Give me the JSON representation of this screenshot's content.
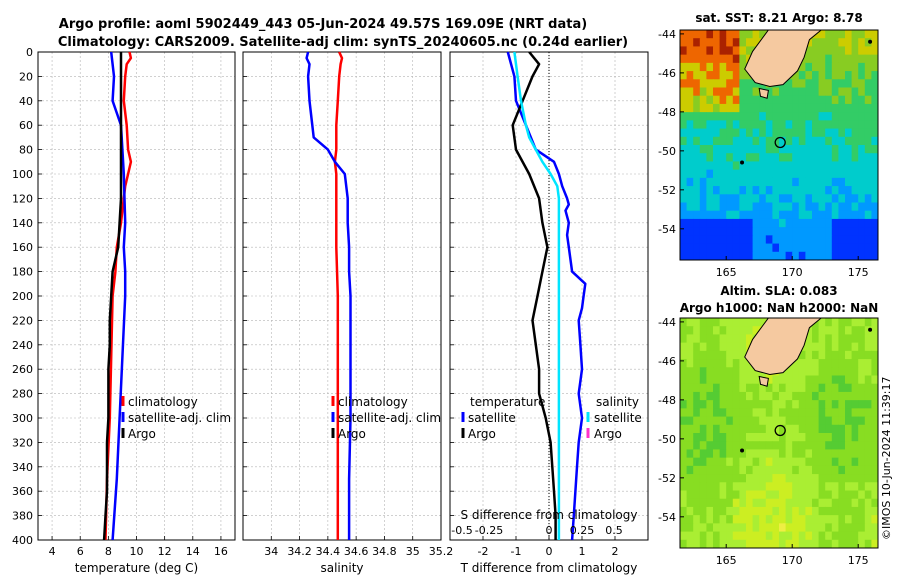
{
  "title": {
    "line1": "Argo profile: aoml 5902449_443 05-Jun-2024 49.57S 169.09E (NRT data)",
    "line2": "Climatology: CARS2009. Satellite-adj clim: synTS_20240605.nc (0.24d earlier)"
  },
  "depth_axis": {
    "ylim": [
      0,
      400
    ],
    "ticks": [
      "0",
      "20",
      "40",
      "60",
      "80",
      "100",
      "120",
      "140",
      "160",
      "180",
      "200",
      "220",
      "240",
      "260",
      "280",
      "300",
      "320",
      "340",
      "360",
      "380",
      "400"
    ]
  },
  "copyright": "©IMOS 10-Jun-2024 11:39:17",
  "colors": {
    "climatology": "#ff0000",
    "satellite": "#0000ff",
    "argo": "#000000",
    "sal_satellite": "#00e5ff",
    "sal_argo": "#ff33cc",
    "land": "#f5c9a0"
  },
  "chart_data": [
    {
      "type": "line",
      "name": "temperature",
      "xlabel": "temperature (deg C)",
      "xlim": [
        3,
        17
      ],
      "xticks": [
        "4",
        "6",
        "8",
        "10",
        "12",
        "14",
        "16"
      ],
      "ylim": [
        0,
        400
      ],
      "legend": [
        "climatology",
        "satellite-adj. clim",
        "Argo"
      ],
      "series": [
        {
          "name": "climatology",
          "color": "#ff0000",
          "depth": [
            0,
            5,
            10,
            20,
            40,
            60,
            80,
            90,
            100,
            110,
            120,
            140,
            160,
            180,
            200,
            250,
            300,
            350,
            400
          ],
          "values": [
            9.5,
            9.6,
            9.3,
            9.2,
            9.1,
            9.3,
            9.4,
            9.6,
            9.4,
            9.2,
            9.1,
            8.9,
            8.6,
            8.5,
            8.3,
            8.2,
            8.1,
            7.9,
            7.8
          ]
        },
        {
          "name": "satellite-adj. clim",
          "color": "#0000ff",
          "depth": [
            0,
            10,
            20,
            40,
            50,
            60,
            80,
            100,
            140,
            160,
            180,
            200,
            250,
            300,
            350,
            400
          ],
          "values": [
            8.2,
            8.3,
            8.4,
            8.3,
            8.6,
            8.9,
            9.0,
            9.1,
            9.2,
            9.1,
            9.2,
            9.2,
            9.0,
            8.8,
            8.6,
            8.3
          ]
        },
        {
          "name": "Argo",
          "color": "#000000",
          "depth": [
            0,
            20,
            40,
            60,
            80,
            100,
            120,
            140,
            160,
            180,
            200,
            220,
            240,
            260,
            280,
            300,
            320,
            340,
            360,
            380,
            400
          ],
          "values": [
            8.9,
            8.9,
            8.9,
            8.9,
            8.9,
            8.9,
            8.9,
            8.8,
            8.7,
            8.3,
            8.2,
            8.1,
            8.1,
            8.0,
            8.0,
            8.0,
            7.9,
            7.9,
            7.9,
            7.8,
            7.7
          ]
        }
      ]
    },
    {
      "type": "line",
      "name": "salinity",
      "xlabel": "salinity",
      "xlim": [
        33.8,
        35.2
      ],
      "xticks": [
        "34",
        "34.2",
        "34.4",
        "34.6",
        "34.8",
        "35",
        "35.2"
      ],
      "ylim": [
        0,
        400
      ],
      "legend": [
        "climatology",
        "satellite-adj. clim",
        "Argo"
      ],
      "series": [
        {
          "name": "climatology",
          "color": "#ff0000",
          "depth": [
            0,
            5,
            10,
            20,
            40,
            60,
            80,
            90,
            100,
            120,
            140,
            160,
            200,
            250,
            300,
            350,
            400
          ],
          "values": [
            34.48,
            34.5,
            34.49,
            34.48,
            34.47,
            34.46,
            34.46,
            34.45,
            34.46,
            34.46,
            34.46,
            34.46,
            34.47,
            34.47,
            34.47,
            34.47,
            34.47
          ]
        },
        {
          "name": "satellite-adj. clim",
          "color": "#0000ff",
          "depth": [
            0,
            5,
            10,
            20,
            40,
            60,
            70,
            80,
            90,
            100,
            120,
            140,
            160,
            180,
            200,
            250,
            300,
            350,
            400
          ],
          "values": [
            34.26,
            34.25,
            34.27,
            34.26,
            34.27,
            34.29,
            34.3,
            34.4,
            34.45,
            34.52,
            34.54,
            34.54,
            34.55,
            34.55,
            34.56,
            34.56,
            34.56,
            34.55,
            34.55
          ]
        }
      ]
    },
    {
      "type": "line",
      "name": "difference",
      "xlabel": "T difference from climatology",
      "xlabel_top": "S difference from climatology",
      "xlim": [
        -3,
        3
      ],
      "xticks": [
        "-2",
        "-1",
        "0",
        "1",
        "2"
      ],
      "sticks": [
        "-0.5",
        "-0.25",
        "0",
        "0.25",
        "0.5"
      ],
      "ylim": [
        0,
        400
      ],
      "legend_temperature": [
        "temperature",
        "satellite",
        "Argo"
      ],
      "legend_salinity": [
        "salinity",
        "satellite",
        "Argo"
      ],
      "series": [
        {
          "name": "temperature satellite",
          "color": "#0000ff",
          "depth": [
            0,
            20,
            40,
            60,
            80,
            90,
            100,
            110,
            120,
            125,
            130,
            140,
            150,
            160,
            180,
            190,
            200,
            210,
            220,
            240,
            260,
            280,
            300,
            320,
            340,
            360,
            380,
            400
          ],
          "values": [
            -1.25,
            -1.05,
            -1.0,
            -0.7,
            -0.4,
            0.15,
            0.3,
            0.4,
            0.55,
            0.6,
            0.5,
            0.6,
            0.55,
            0.6,
            0.7,
            1.1,
            1.05,
            1.0,
            0.9,
            0.95,
            1.0,
            0.9,
            1.0,
            0.9,
            0.85,
            0.8,
            0.75,
            0.7
          ]
        },
        {
          "name": "temperature Argo",
          "color": "#000000",
          "depth": [
            0,
            10,
            20,
            40,
            60,
            80,
            100,
            120,
            140,
            160,
            180,
            200,
            220,
            240,
            260,
            280,
            300,
            320,
            340,
            360,
            380,
            400
          ],
          "values": [
            -0.6,
            -0.3,
            -0.5,
            -0.8,
            -1.1,
            -1.0,
            -0.6,
            -0.3,
            -0.2,
            -0.05,
            -0.2,
            -0.35,
            -0.5,
            -0.4,
            -0.3,
            -0.3,
            -0.1,
            0.05,
            0.1,
            0.15,
            0.2,
            0.2
          ]
        },
        {
          "name": "salinity satellite",
          "color": "#00e5ff",
          "depth": [
            0,
            10,
            20,
            40,
            60,
            70,
            80,
            90,
            100,
            110,
            120,
            140,
            160,
            200,
            250,
            300,
            350,
            400
          ],
          "values": [
            -1.05,
            -1.0,
            -0.95,
            -0.85,
            -0.7,
            -0.6,
            -0.4,
            -0.2,
            0.05,
            0.25,
            0.3,
            0.3,
            0.3,
            0.3,
            0.3,
            0.3,
            0.3,
            0.3
          ]
        }
      ]
    }
  ],
  "maps": [
    {
      "title": "sat. SST: 8.21 Argo: 8.78",
      "lon_ticks": [
        "165",
        "170",
        "175"
      ],
      "lat_ticks": [
        "-44",
        "-46",
        "-48",
        "-50",
        "-52",
        "-54"
      ],
      "lon_range": [
        161.5,
        176.5
      ],
      "lat_range": [
        -55.6,
        -43.8
      ]
    },
    {
      "title_line1": "Altim. SLA: 0.083",
      "title_line2": "Argo h1000: NaN h2000: NaN",
      "lon_ticks": [
        "165",
        "170",
        "175"
      ],
      "lat_ticks": [
        "-44",
        "-46",
        "-48",
        "-50",
        "-52",
        "-54"
      ],
      "lon_range": [
        161.5,
        176.5
      ],
      "lat_range": [
        -55.6,
        -43.8
      ]
    }
  ]
}
